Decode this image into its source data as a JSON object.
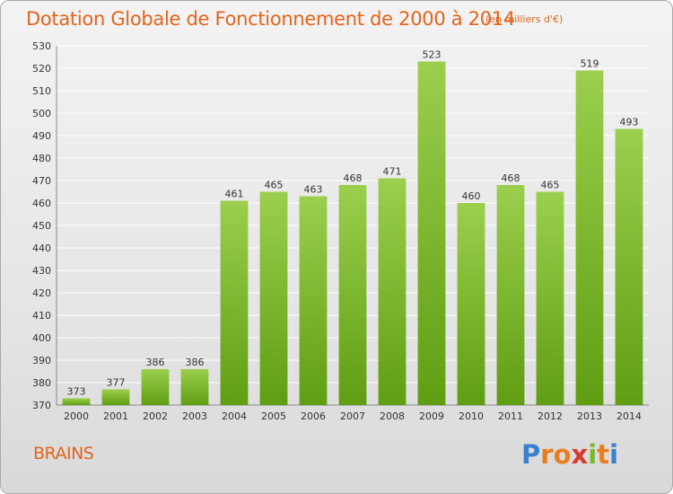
{
  "header": {
    "title": "Dotation Globale de Fonctionnement de 2000 à 2014",
    "unit": "(en milliers d'€)"
  },
  "footer": {
    "commune": "BRAINS",
    "logo_letters": [
      "P",
      "r",
      "o",
      "x",
      "i",
      "t",
      "i"
    ],
    "logo_colors": [
      "#3a7fd0",
      "#e97e1e",
      "#e97e1e",
      "#d93a2e",
      "#7cb82f",
      "#e97e1e",
      "#3a7fd0"
    ]
  },
  "colors": {
    "bar_top": "#9bcf4d",
    "bar_bottom": "#5f9e12",
    "grid": "#ffffff",
    "text": "#333333",
    "accent": "#e2641c"
  },
  "chart_data": {
    "type": "bar",
    "title": "Dotation Globale de Fonctionnement de 2000 à 2014",
    "subtitle": "(en milliers d'€)",
    "xlabel": "",
    "ylabel": "",
    "categories": [
      "2000",
      "2001",
      "2002",
      "2003",
      "2004",
      "2005",
      "2006",
      "2007",
      "2008",
      "2009",
      "2010",
      "2011",
      "2012",
      "2013",
      "2014"
    ],
    "values": [
      373,
      377,
      386,
      386,
      461,
      465,
      463,
      468,
      471,
      523,
      460,
      468,
      465,
      519,
      493
    ],
    "ylim": [
      370,
      530
    ],
    "ytick_step": 10,
    "grid": true,
    "data_labels": true
  }
}
